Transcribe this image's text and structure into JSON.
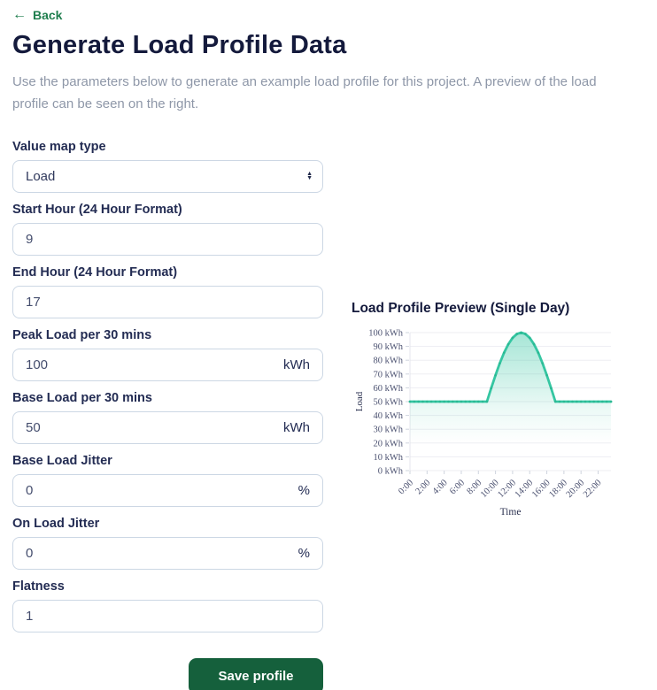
{
  "page": {
    "back_label": "Back",
    "back_arrow": "←",
    "title": "Generate Load Profile Data",
    "description": "Use the parameters below to generate an example load profile for this project. A preview of the load profile can be seen on the right."
  },
  "colors": {
    "accent_green": "#1f7e4e",
    "button_green": "#15603c",
    "heading_navy": "#141a3c",
    "label_navy": "#232c53",
    "muted_text": "#8e97a8",
    "input_border": "#ccd7e4",
    "line_teal": "#35c6a2"
  },
  "icons": {
    "back_arrow": "←",
    "select_spinner_up": "▲",
    "select_spinner_down": "▼"
  },
  "form": {
    "fields": [
      {
        "id": "value-map-type",
        "label": "Value map type",
        "type": "select",
        "value": "Load",
        "suffix": ""
      },
      {
        "id": "start-hour",
        "label": "Start Hour (24 Hour Format)",
        "type": "text",
        "value": "9",
        "suffix": ""
      },
      {
        "id": "end-hour",
        "label": "End Hour (24 Hour Format)",
        "type": "text",
        "value": "17",
        "suffix": ""
      },
      {
        "id": "peak-load",
        "label": "Peak Load per 30 mins",
        "type": "text",
        "value": "100",
        "suffix": "kWh"
      },
      {
        "id": "base-load",
        "label": "Base Load per 30 mins",
        "type": "text",
        "value": "50",
        "suffix": "kWh"
      },
      {
        "id": "base-load-jitter",
        "label": "Base Load Jitter",
        "type": "text",
        "value": "0",
        "suffix": "%"
      },
      {
        "id": "on-load-jitter",
        "label": "On Load Jitter",
        "type": "text",
        "value": "0",
        "suffix": "%"
      },
      {
        "id": "flatness",
        "label": "Flatness",
        "type": "text",
        "value": "1",
        "suffix": ""
      }
    ],
    "save_label": "Save profile"
  },
  "chart_data": {
    "type": "area",
    "title": "Load Profile Preview (Single Day)",
    "xlabel": "Time",
    "ylabel": "Load",
    "ylim": [
      0,
      100
    ],
    "x_max_hours": 23.5,
    "x_hours": [
      0,
      0.5,
      1,
      1.5,
      2,
      2.5,
      3,
      3.5,
      4,
      4.5,
      5,
      5.5,
      6,
      6.5,
      7,
      7.5,
      8,
      8.5,
      9,
      9.5,
      10,
      10.5,
      11,
      11.5,
      12,
      12.5,
      13,
      13.5,
      14,
      14.5,
      15,
      15.5,
      16,
      16.5,
      17,
      17.5,
      18,
      18.5,
      19,
      19.5,
      20,
      20.5,
      21,
      21.5,
      22,
      22.5,
      23,
      23.5
    ],
    "values": [
      50,
      50,
      50,
      50,
      50,
      50,
      50,
      50,
      50,
      50,
      50,
      50,
      50,
      50,
      50,
      50,
      50,
      50,
      50,
      59.8,
      69.1,
      77.8,
      85.4,
      91.6,
      96.2,
      99,
      100,
      99,
      96.2,
      91.6,
      85.4,
      77.8,
      69.1,
      59.8,
      50,
      50,
      50,
      50,
      50,
      50,
      50,
      50,
      50,
      50,
      50,
      50,
      50,
      50
    ],
    "x_tick_hours": [
      0,
      2,
      4,
      6,
      8,
      10,
      12,
      14,
      16,
      18,
      20,
      22
    ],
    "x_tick_labels": [
      "0:00",
      "2:00",
      "4:00",
      "6:00",
      "8:00",
      "10:00",
      "12:00",
      "14:00",
      "16:00",
      "18:00",
      "20:00",
      "22:00"
    ],
    "y_tick_values": [
      0,
      10,
      20,
      30,
      40,
      50,
      60,
      70,
      80,
      90,
      100
    ],
    "y_tick_suffix": " kWh",
    "grid": "horizontal",
    "legend": "none",
    "line_color": "#35c6a2",
    "fill_color": "#3ac7a4",
    "axis_text_color": "#4b5170",
    "axis_title_color": "#2b3150"
  }
}
